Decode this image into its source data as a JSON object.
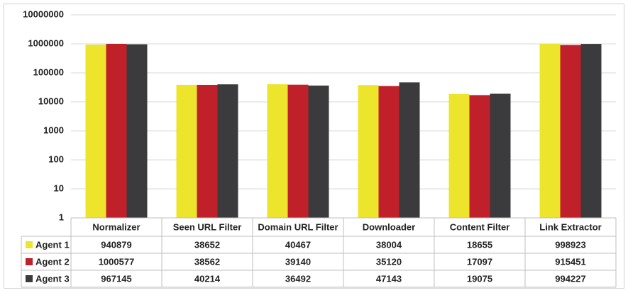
{
  "chart_data": {
    "type": "bar",
    "log_scale": true,
    "grid": true,
    "categories": [
      "Normalizer",
      "Seen URL Filter",
      "Domain URL Filter",
      "Downloader",
      "Content Filter",
      "Link Extractor"
    ],
    "series": [
      {
        "name": "Agent 1",
        "color": "#ece52c",
        "values": [
          940879,
          38652,
          40467,
          38004,
          18655,
          998923
        ]
      },
      {
        "name": "Agent 2",
        "color": "#c0202a",
        "values": [
          1000577,
          38562,
          39140,
          35120,
          17097,
          915451
        ]
      },
      {
        "name": "Agent 3",
        "color": "#3b3b3d",
        "values": [
          967145,
          40214,
          36492,
          47143,
          19075,
          994227
        ]
      }
    ],
    "ylim": [
      1,
      10000000
    ],
    "yticks": [
      1,
      10,
      100,
      1000,
      10000,
      100000,
      1000000,
      10000000
    ]
  }
}
